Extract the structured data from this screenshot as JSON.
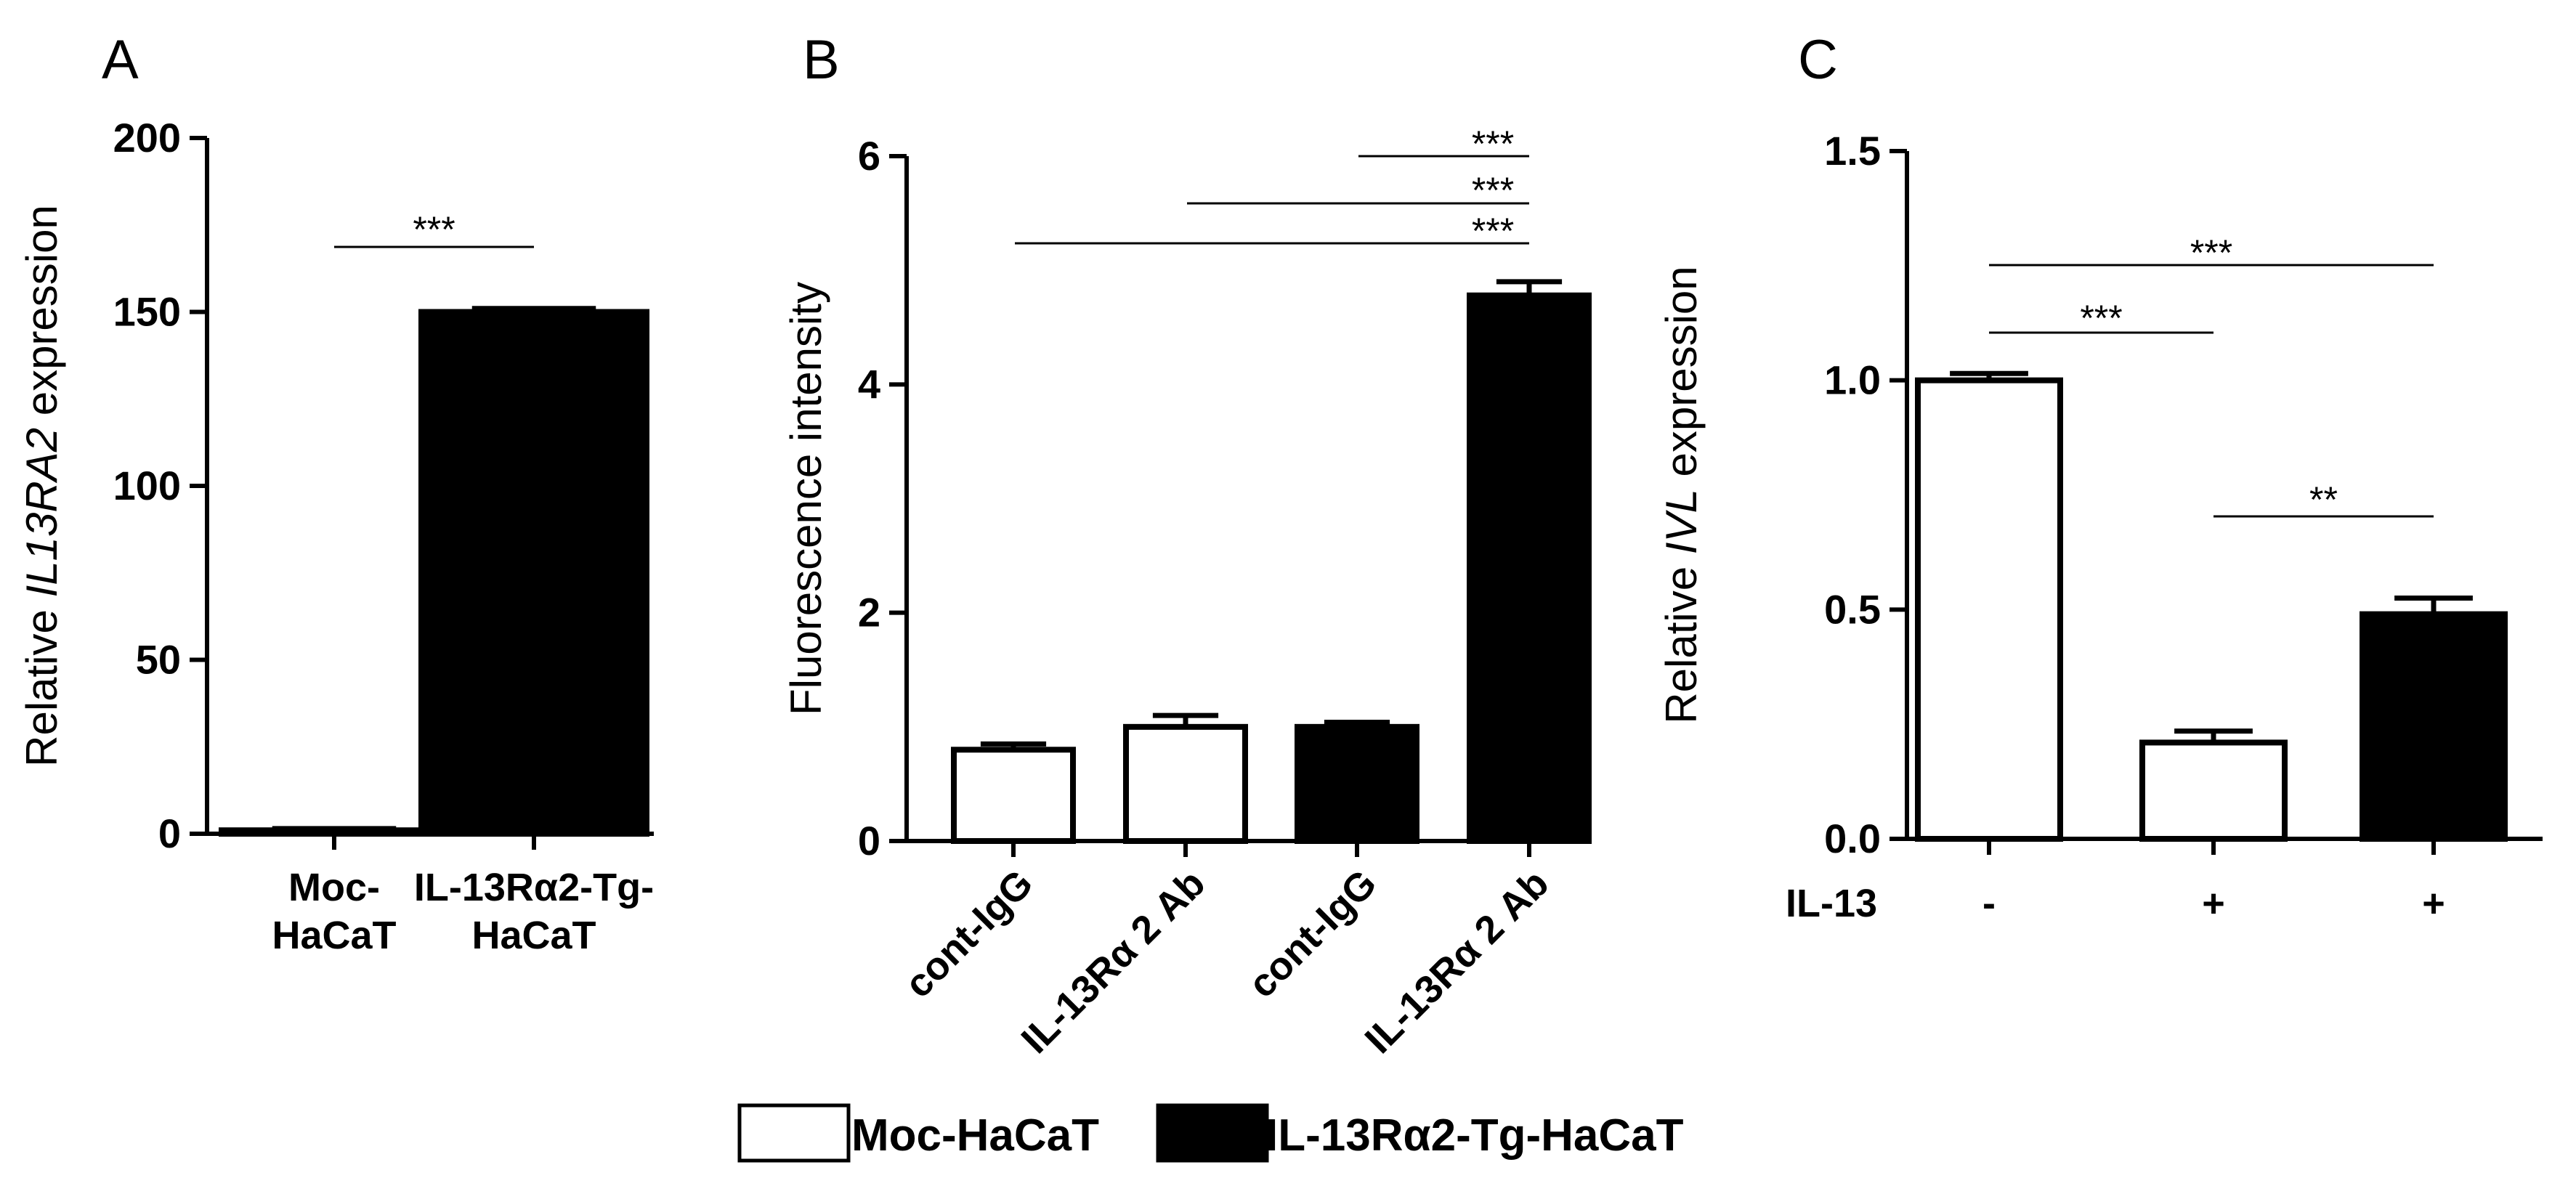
{
  "figure_label": "",
  "legend": {
    "items": [
      {
        "label": "Moc-HaCaT",
        "color": "#ffffff"
      },
      {
        "label": "IL-13Rα2-Tg-HaCaT",
        "color": "#000000"
      }
    ]
  },
  "chart_data": [
    {
      "type": "bar",
      "panel_label": "A",
      "ylabel_prefix": "Relative ",
      "ylabel_italic": "IL13RA2",
      "ylabel_suffix": " expression",
      "ylim": [
        0,
        200
      ],
      "yticks": [
        "0",
        "50",
        "100",
        "150",
        "200"
      ],
      "categories": [
        {
          "lines": [
            "Moc-",
            "HaCaT"
          ],
          "fill": "#ffffff"
        },
        {
          "lines": [
            "IL-13Rα2-Tg-",
            "HaCaT"
          ],
          "fill": "#000000"
        }
      ],
      "values": [
        1,
        150
      ],
      "errors": [
        0.5,
        1
      ],
      "significance": [
        {
          "from": 0,
          "to": 1,
          "label": "***"
        }
      ]
    },
    {
      "type": "bar",
      "panel_label": "B",
      "ylabel": "Fluorescence intensity",
      "ylim": [
        0,
        6
      ],
      "yticks": [
        "0",
        "2",
        "4",
        "6"
      ],
      "categories": [
        {
          "label": "cont-IgG",
          "fill": "#ffffff"
        },
        {
          "label": "IL-13Rα 2 Ab",
          "fill": "#ffffff"
        },
        {
          "label": "cont-IgG",
          "fill": "#000000"
        },
        {
          "label": "IL-13Rα 2 Ab",
          "fill": "#000000"
        }
      ],
      "values": [
        0.8,
        1.0,
        1.0,
        4.78
      ],
      "errors": [
        0.05,
        0.1,
        0.04,
        0.12
      ],
      "significance": [
        {
          "from": 2,
          "to": 3,
          "label": "***"
        },
        {
          "from": 1,
          "to": 3,
          "label": "***"
        },
        {
          "from": 0,
          "to": 3,
          "label": "***"
        }
      ]
    },
    {
      "type": "bar",
      "panel_label": "C",
      "ylabel_prefix": "Relative ",
      "ylabel_italic": "IVL",
      "ylabel_suffix": " expression",
      "ylim": [
        0,
        1.5
      ],
      "yticks": [
        "0.0",
        "0.5",
        "1.0",
        "1.5"
      ],
      "treatment_label": "IL-13",
      "categories": [
        {
          "label": "-",
          "fill": "#ffffff"
        },
        {
          "label": "+",
          "fill": "#ffffff"
        },
        {
          "label": "+",
          "fill": "#000000"
        }
      ],
      "values": [
        1.0,
        0.21,
        0.49
      ],
      "errors": [
        0.015,
        0.025,
        0.035
      ],
      "significance": [
        {
          "from": 0,
          "to": 2,
          "label": "***"
        },
        {
          "from": 0,
          "to": 1,
          "label": "***"
        },
        {
          "from": 1,
          "to": 2,
          "label": "**"
        }
      ]
    }
  ]
}
